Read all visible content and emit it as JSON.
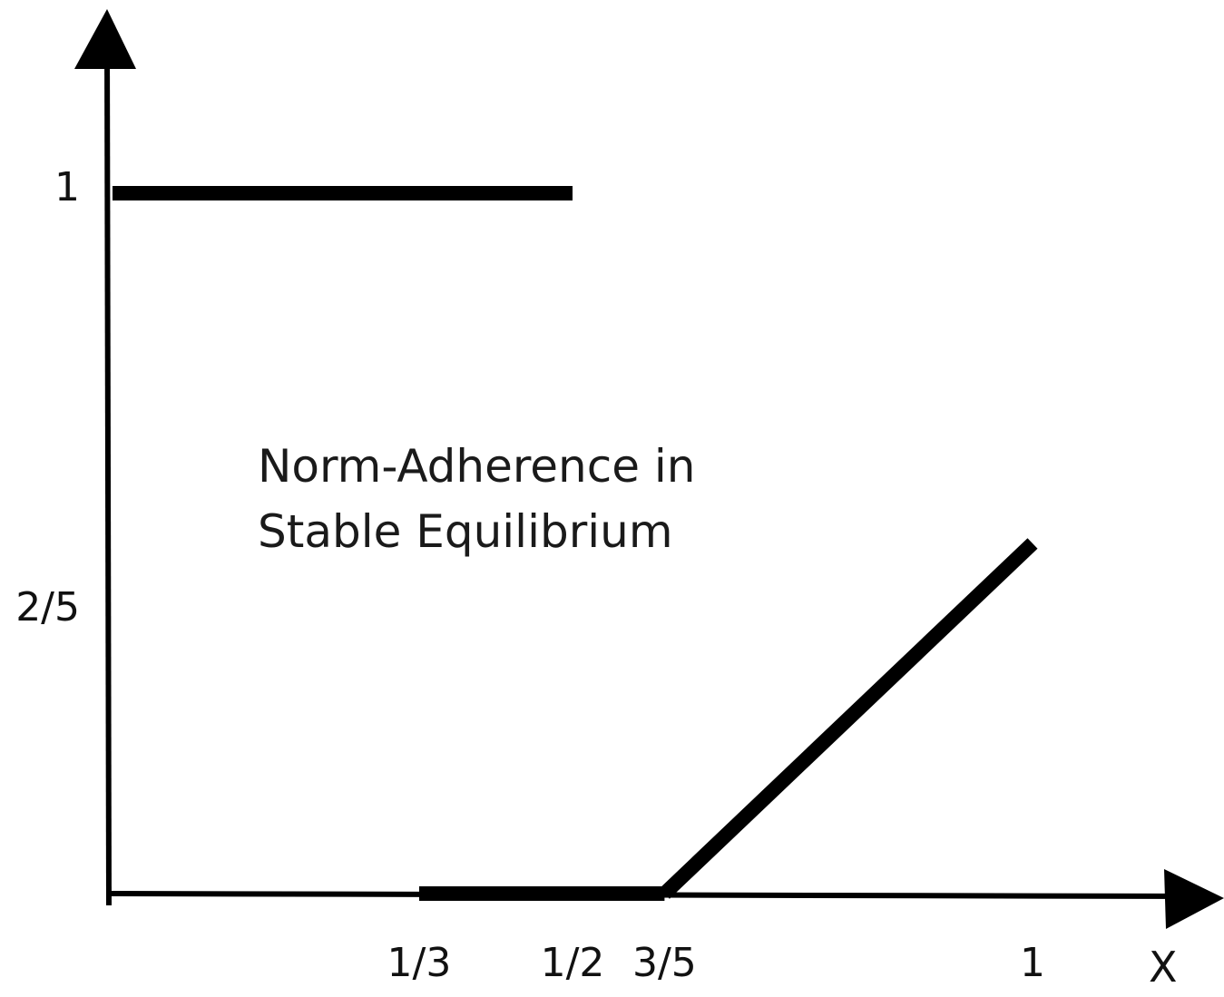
{
  "chart_data": {
    "type": "line",
    "annotation_lines": [
      "Norm-Adherence in",
      "Stable Equilibrium"
    ],
    "xlabel": "X",
    "ylabel": "",
    "xlim": [
      0,
      1
    ],
    "ylim": [
      0,
      1
    ],
    "x_ticks": [
      {
        "value": 0.3333,
        "label": "1/3"
      },
      {
        "value": 0.5,
        "label": "1/2"
      },
      {
        "value": 0.6,
        "label": "3/5"
      },
      {
        "value": 1,
        "label": "1"
      }
    ],
    "y_ticks": [
      {
        "value": 1,
        "label": "1"
      },
      {
        "value": 0.4,
        "label": "2/5"
      }
    ],
    "segments": [
      {
        "points": [
          [
            0,
            1
          ],
          [
            0.5,
            1
          ]
        ]
      },
      {
        "points": [
          [
            0.3333,
            0
          ],
          [
            0.6,
            0
          ]
        ]
      },
      {
        "points": [
          [
            0.6,
            0
          ],
          [
            1,
            0.5
          ]
        ]
      }
    ],
    "line_color": "#000000",
    "grid": false
  }
}
